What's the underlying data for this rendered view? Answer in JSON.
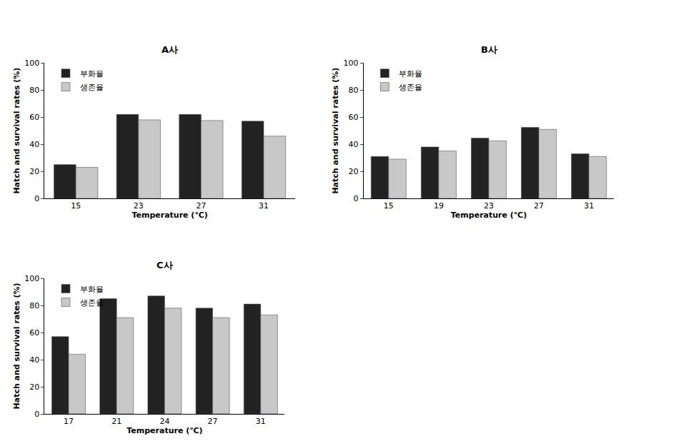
{
  "chart_data": [
    {
      "type": "bar",
      "title": "A사",
      "categories": [
        "15",
        "23",
        "27",
        "31"
      ],
      "series": [
        {
          "name": "부화율",
          "color": "#222222",
          "values": [
            25,
            62,
            62,
            57
          ]
        },
        {
          "name": "생존율",
          "color": "#c8c8c8",
          "values": [
            23,
            58,
            57.5,
            46
          ]
        }
      ],
      "xlabel": "Temperature (℃)",
      "ylabel": "Hatch and survival rates (%)",
      "ylim": [
        0,
        100
      ],
      "yticks": [
        0,
        20,
        40,
        60,
        80,
        100
      ],
      "legend": "upper left"
    },
    {
      "type": "bar",
      "title": "B사",
      "categories": [
        "15",
        "19",
        "23",
        "27",
        "31"
      ],
      "series": [
        {
          "name": "부화율",
          "color": "#222222",
          "values": [
            31,
            38,
            44.5,
            52.5,
            33
          ]
        },
        {
          "name": "생존율",
          "color": "#c8c8c8",
          "values": [
            29,
            35,
            42.5,
            51,
            31
          ]
        }
      ],
      "xlabel": "Temperature (℃)",
      "ylabel": "Hatch and survival rates (%)",
      "ylim": [
        0,
        100
      ],
      "yticks": [
        0,
        20,
        40,
        60,
        80,
        100
      ],
      "legend": "upper left"
    },
    {
      "type": "bar",
      "title": "C사",
      "categories": [
        "17",
        "21",
        "24",
        "27",
        "31"
      ],
      "series": [
        {
          "name": "부화율",
          "color": "#222222",
          "values": [
            57,
            85,
            87,
            78,
            81
          ]
        },
        {
          "name": "생존율",
          "color": "#c8c8c8",
          "values": [
            44,
            71,
            78,
            71,
            73
          ]
        }
      ],
      "xlabel": "Temperature (℃)",
      "ylabel": "Hatch and survival rates (%)",
      "ylim": [
        0,
        100
      ],
      "yticks": [
        0,
        20,
        40,
        60,
        80,
        100
      ],
      "legend": "upper left"
    }
  ]
}
